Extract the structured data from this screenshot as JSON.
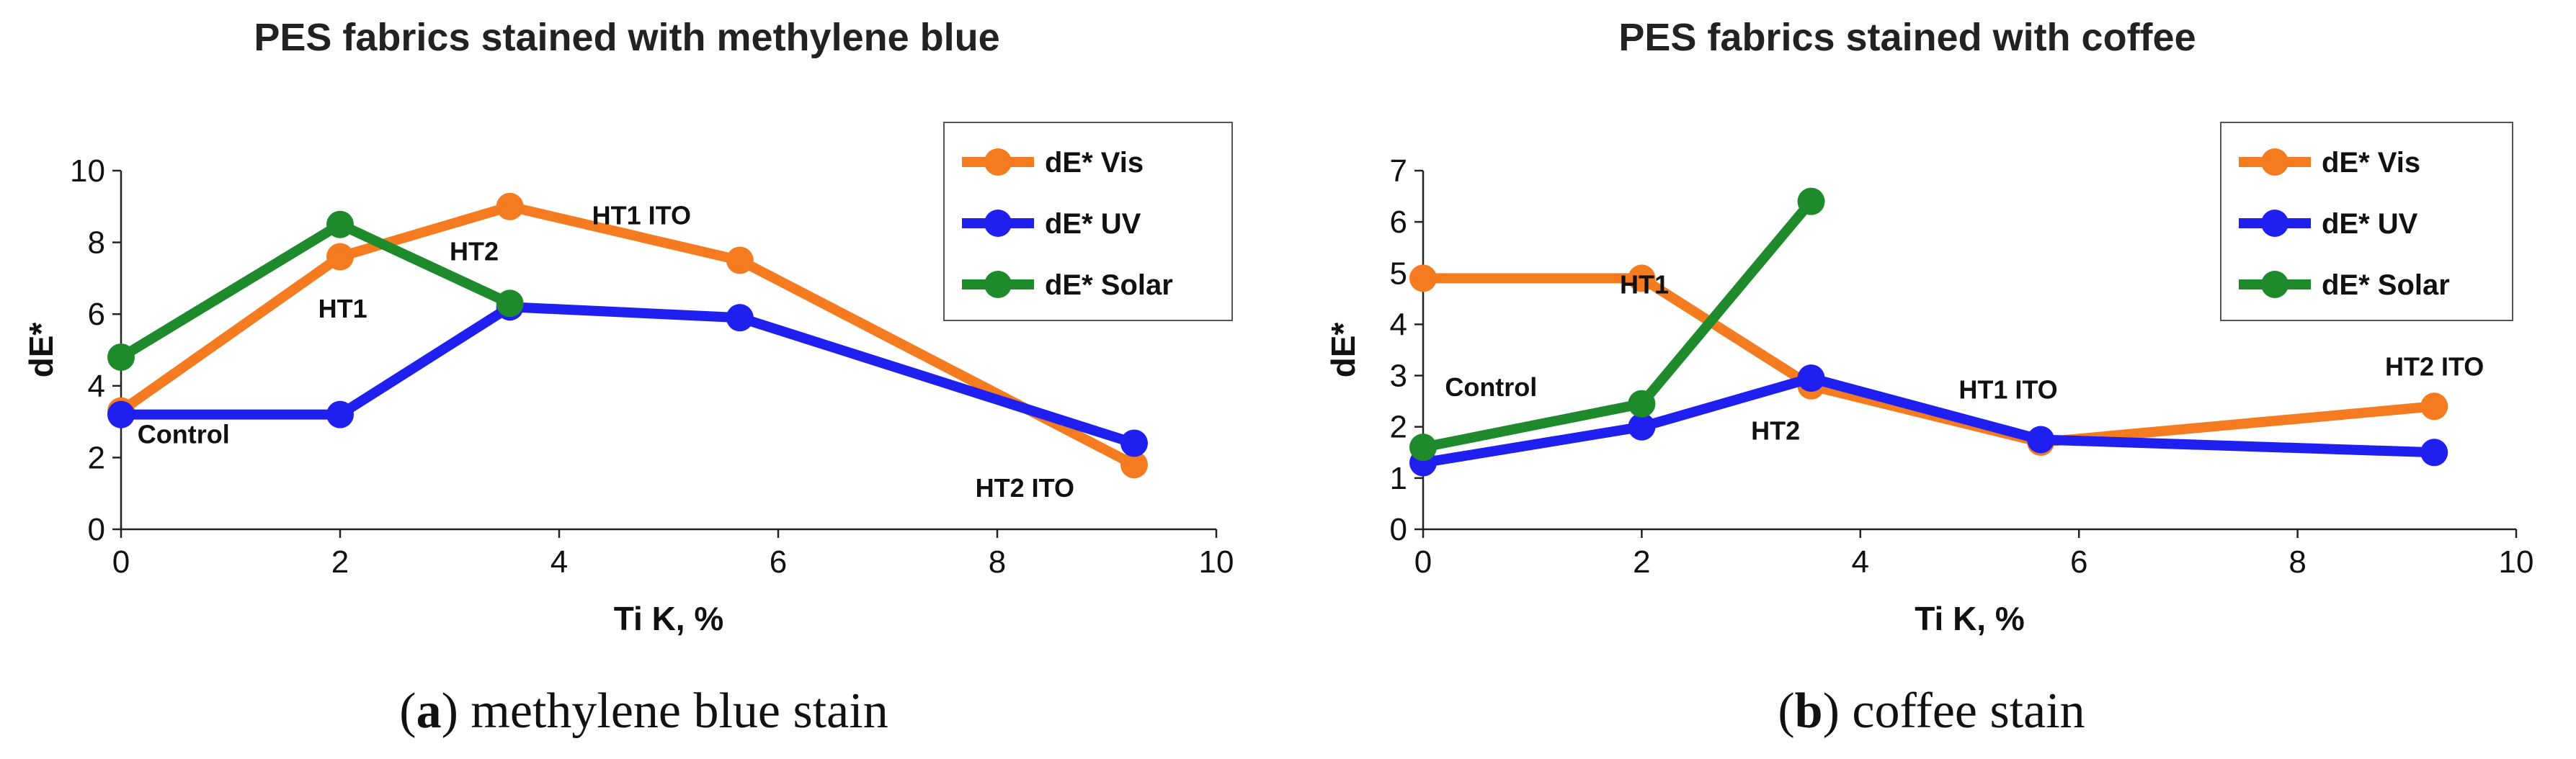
{
  "chart_data": [
    {
      "type": "line",
      "title": "PES fabrics stained with methylene blue",
      "xlabel": "Ti K, %",
      "ylabel": "dE*",
      "xlim": [
        0,
        10
      ],
      "ylim": [
        0,
        10
      ],
      "xticks": [
        0,
        2,
        4,
        6,
        8,
        10
      ],
      "yticks": [
        0,
        2,
        4,
        6,
        8,
        10
      ],
      "legend_position": "top-right",
      "caption_letter": "a",
      "caption_text": "methylene blue stain",
      "series": [
        {
          "name": "dE* Vis",
          "color": "#f47b20",
          "x": [
            0,
            2,
            3.55,
            5.65,
            9.25
          ],
          "y": [
            3.3,
            7.6,
            9.0,
            7.5,
            1.8
          ]
        },
        {
          "name": "dE* UV",
          "color": "#1f1ff0",
          "x": [
            0,
            2,
            3.55,
            5.65,
            9.25
          ],
          "y": [
            3.2,
            3.2,
            6.2,
            5.9,
            2.4
          ]
        },
        {
          "name": "dE* Solar",
          "color": "#1e8a2c",
          "x": [
            0,
            2,
            3.55
          ],
          "y": [
            4.8,
            8.5,
            6.3
          ]
        }
      ],
      "point_labels": [
        {
          "text": "Control",
          "x": 0.15,
          "y": 2.4
        },
        {
          "text": "HT1",
          "x": 1.8,
          "y": 5.9
        },
        {
          "text": "HT2",
          "x": 3.0,
          "y": 7.5
        },
        {
          "text": "HT1 ITO",
          "x": 4.3,
          "y": 8.5
        },
        {
          "text": "HT2 ITO",
          "x": 7.8,
          "y": 0.9
        }
      ]
    },
    {
      "type": "line",
      "title": "PES fabrics stained with coffee",
      "xlabel": "Ti K, %",
      "ylabel": "dE*",
      "xlim": [
        0,
        10
      ],
      "ylim": [
        0,
        7
      ],
      "xticks": [
        0,
        2,
        4,
        6,
        8,
        10
      ],
      "yticks": [
        0,
        1,
        2,
        3,
        4,
        5,
        6,
        7
      ],
      "legend_position": "top-right",
      "caption_letter": "b",
      "caption_text": "coffee stain",
      "series": [
        {
          "name": "dE* Vis",
          "color": "#f47b20",
          "x": [
            0,
            2,
            3.55,
            5.65,
            9.25
          ],
          "y": [
            4.9,
            4.9,
            2.8,
            1.7,
            2.4
          ]
        },
        {
          "name": "dE* UV",
          "color": "#1f1ff0",
          "x": [
            0,
            2,
            3.55,
            5.65,
            9.25
          ],
          "y": [
            1.3,
            2.0,
            2.95,
            1.75,
            1.5
          ]
        },
        {
          "name": "dE* Solar",
          "color": "#1e8a2c",
          "x": [
            0,
            2,
            3.55
          ],
          "y": [
            1.6,
            2.45,
            6.4
          ]
        }
      ],
      "point_labels": [
        {
          "text": "Control",
          "x": 0.2,
          "y": 2.6
        },
        {
          "text": "HT1",
          "x": 1.8,
          "y": 4.6
        },
        {
          "text": "HT2",
          "x": 3.0,
          "y": 1.75
        },
        {
          "text": "HT1 ITO",
          "x": 4.9,
          "y": 2.55
        },
        {
          "text": "HT2 ITO",
          "x": 8.8,
          "y": 3.0
        }
      ]
    }
  ]
}
